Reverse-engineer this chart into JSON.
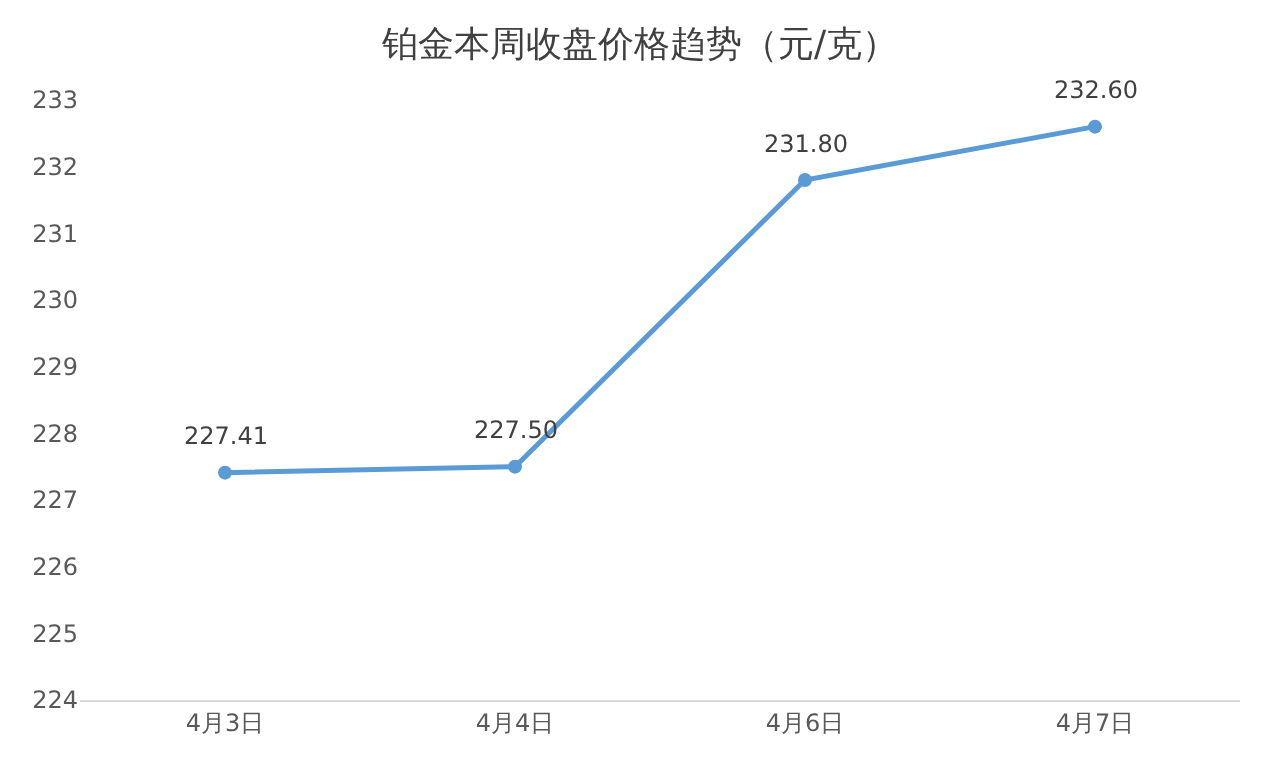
{
  "chart_data": {
    "type": "line",
    "title": "铂金本周收盘价格趋势（元/克）",
    "categories": [
      "4月3日",
      "4月4日",
      "4月6日",
      "4月7日"
    ],
    "series": [
      {
        "color": "#5b9bd5",
        "values": [
          227.41,
          227.5,
          231.8,
          232.6
        ]
      }
    ],
    "value_labels": [
      "227.41",
      "227.50",
      "231.80",
      "232.60"
    ],
    "ylim": [
      224,
      233
    ],
    "yticks": [
      224,
      225,
      226,
      227,
      228,
      229,
      230,
      231,
      232,
      233
    ],
    "grid": false,
    "marker": "circle",
    "line_style": "solid"
  }
}
